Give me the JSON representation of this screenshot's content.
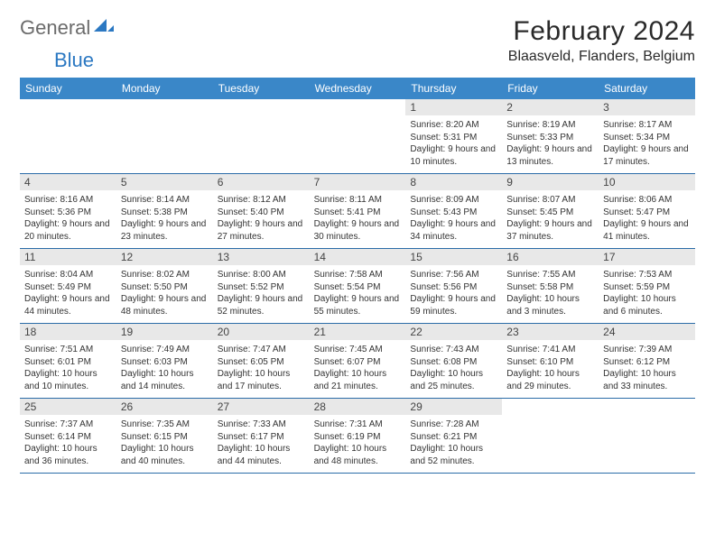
{
  "logo": {
    "general": "General",
    "blue": "Blue"
  },
  "title": "February 2024",
  "location": "Blaasveld, Flanders, Belgium",
  "colors": {
    "header_bg": "#3a87c8",
    "header_text": "#ffffff",
    "row_border": "#2b6ca8",
    "daynum_bg": "#e8e8e8",
    "body_text": "#333333",
    "logo_gray": "#6b6b6b",
    "logo_blue": "#2b78c2"
  },
  "day_names": [
    "Sunday",
    "Monday",
    "Tuesday",
    "Wednesday",
    "Thursday",
    "Friday",
    "Saturday"
  ],
  "weeks": [
    [
      {
        "day": "",
        "sunrise": "",
        "sunset": "",
        "daylight": ""
      },
      {
        "day": "",
        "sunrise": "",
        "sunset": "",
        "daylight": ""
      },
      {
        "day": "",
        "sunrise": "",
        "sunset": "",
        "daylight": ""
      },
      {
        "day": "",
        "sunrise": "",
        "sunset": "",
        "daylight": ""
      },
      {
        "day": "1",
        "sunrise": "Sunrise: 8:20 AM",
        "sunset": "Sunset: 5:31 PM",
        "daylight": "Daylight: 9 hours and 10 minutes."
      },
      {
        "day": "2",
        "sunrise": "Sunrise: 8:19 AM",
        "sunset": "Sunset: 5:33 PM",
        "daylight": "Daylight: 9 hours and 13 minutes."
      },
      {
        "day": "3",
        "sunrise": "Sunrise: 8:17 AM",
        "sunset": "Sunset: 5:34 PM",
        "daylight": "Daylight: 9 hours and 17 minutes."
      }
    ],
    [
      {
        "day": "4",
        "sunrise": "Sunrise: 8:16 AM",
        "sunset": "Sunset: 5:36 PM",
        "daylight": "Daylight: 9 hours and 20 minutes."
      },
      {
        "day": "5",
        "sunrise": "Sunrise: 8:14 AM",
        "sunset": "Sunset: 5:38 PM",
        "daylight": "Daylight: 9 hours and 23 minutes."
      },
      {
        "day": "6",
        "sunrise": "Sunrise: 8:12 AM",
        "sunset": "Sunset: 5:40 PM",
        "daylight": "Daylight: 9 hours and 27 minutes."
      },
      {
        "day": "7",
        "sunrise": "Sunrise: 8:11 AM",
        "sunset": "Sunset: 5:41 PM",
        "daylight": "Daylight: 9 hours and 30 minutes."
      },
      {
        "day": "8",
        "sunrise": "Sunrise: 8:09 AM",
        "sunset": "Sunset: 5:43 PM",
        "daylight": "Daylight: 9 hours and 34 minutes."
      },
      {
        "day": "9",
        "sunrise": "Sunrise: 8:07 AM",
        "sunset": "Sunset: 5:45 PM",
        "daylight": "Daylight: 9 hours and 37 minutes."
      },
      {
        "day": "10",
        "sunrise": "Sunrise: 8:06 AM",
        "sunset": "Sunset: 5:47 PM",
        "daylight": "Daylight: 9 hours and 41 minutes."
      }
    ],
    [
      {
        "day": "11",
        "sunrise": "Sunrise: 8:04 AM",
        "sunset": "Sunset: 5:49 PM",
        "daylight": "Daylight: 9 hours and 44 minutes."
      },
      {
        "day": "12",
        "sunrise": "Sunrise: 8:02 AM",
        "sunset": "Sunset: 5:50 PM",
        "daylight": "Daylight: 9 hours and 48 minutes."
      },
      {
        "day": "13",
        "sunrise": "Sunrise: 8:00 AM",
        "sunset": "Sunset: 5:52 PM",
        "daylight": "Daylight: 9 hours and 52 minutes."
      },
      {
        "day": "14",
        "sunrise": "Sunrise: 7:58 AM",
        "sunset": "Sunset: 5:54 PM",
        "daylight": "Daylight: 9 hours and 55 minutes."
      },
      {
        "day": "15",
        "sunrise": "Sunrise: 7:56 AM",
        "sunset": "Sunset: 5:56 PM",
        "daylight": "Daylight: 9 hours and 59 minutes."
      },
      {
        "day": "16",
        "sunrise": "Sunrise: 7:55 AM",
        "sunset": "Sunset: 5:58 PM",
        "daylight": "Daylight: 10 hours and 3 minutes."
      },
      {
        "day": "17",
        "sunrise": "Sunrise: 7:53 AM",
        "sunset": "Sunset: 5:59 PM",
        "daylight": "Daylight: 10 hours and 6 minutes."
      }
    ],
    [
      {
        "day": "18",
        "sunrise": "Sunrise: 7:51 AM",
        "sunset": "Sunset: 6:01 PM",
        "daylight": "Daylight: 10 hours and 10 minutes."
      },
      {
        "day": "19",
        "sunrise": "Sunrise: 7:49 AM",
        "sunset": "Sunset: 6:03 PM",
        "daylight": "Daylight: 10 hours and 14 minutes."
      },
      {
        "day": "20",
        "sunrise": "Sunrise: 7:47 AM",
        "sunset": "Sunset: 6:05 PM",
        "daylight": "Daylight: 10 hours and 17 minutes."
      },
      {
        "day": "21",
        "sunrise": "Sunrise: 7:45 AM",
        "sunset": "Sunset: 6:07 PM",
        "daylight": "Daylight: 10 hours and 21 minutes."
      },
      {
        "day": "22",
        "sunrise": "Sunrise: 7:43 AM",
        "sunset": "Sunset: 6:08 PM",
        "daylight": "Daylight: 10 hours and 25 minutes."
      },
      {
        "day": "23",
        "sunrise": "Sunrise: 7:41 AM",
        "sunset": "Sunset: 6:10 PM",
        "daylight": "Daylight: 10 hours and 29 minutes."
      },
      {
        "day": "24",
        "sunrise": "Sunrise: 7:39 AM",
        "sunset": "Sunset: 6:12 PM",
        "daylight": "Daylight: 10 hours and 33 minutes."
      }
    ],
    [
      {
        "day": "25",
        "sunrise": "Sunrise: 7:37 AM",
        "sunset": "Sunset: 6:14 PM",
        "daylight": "Daylight: 10 hours and 36 minutes."
      },
      {
        "day": "26",
        "sunrise": "Sunrise: 7:35 AM",
        "sunset": "Sunset: 6:15 PM",
        "daylight": "Daylight: 10 hours and 40 minutes."
      },
      {
        "day": "27",
        "sunrise": "Sunrise: 7:33 AM",
        "sunset": "Sunset: 6:17 PM",
        "daylight": "Daylight: 10 hours and 44 minutes."
      },
      {
        "day": "28",
        "sunrise": "Sunrise: 7:31 AM",
        "sunset": "Sunset: 6:19 PM",
        "daylight": "Daylight: 10 hours and 48 minutes."
      },
      {
        "day": "29",
        "sunrise": "Sunrise: 7:28 AM",
        "sunset": "Sunset: 6:21 PM",
        "daylight": "Daylight: 10 hours and 52 minutes."
      },
      {
        "day": "",
        "sunrise": "",
        "sunset": "",
        "daylight": ""
      },
      {
        "day": "",
        "sunrise": "",
        "sunset": "",
        "daylight": ""
      }
    ]
  ]
}
